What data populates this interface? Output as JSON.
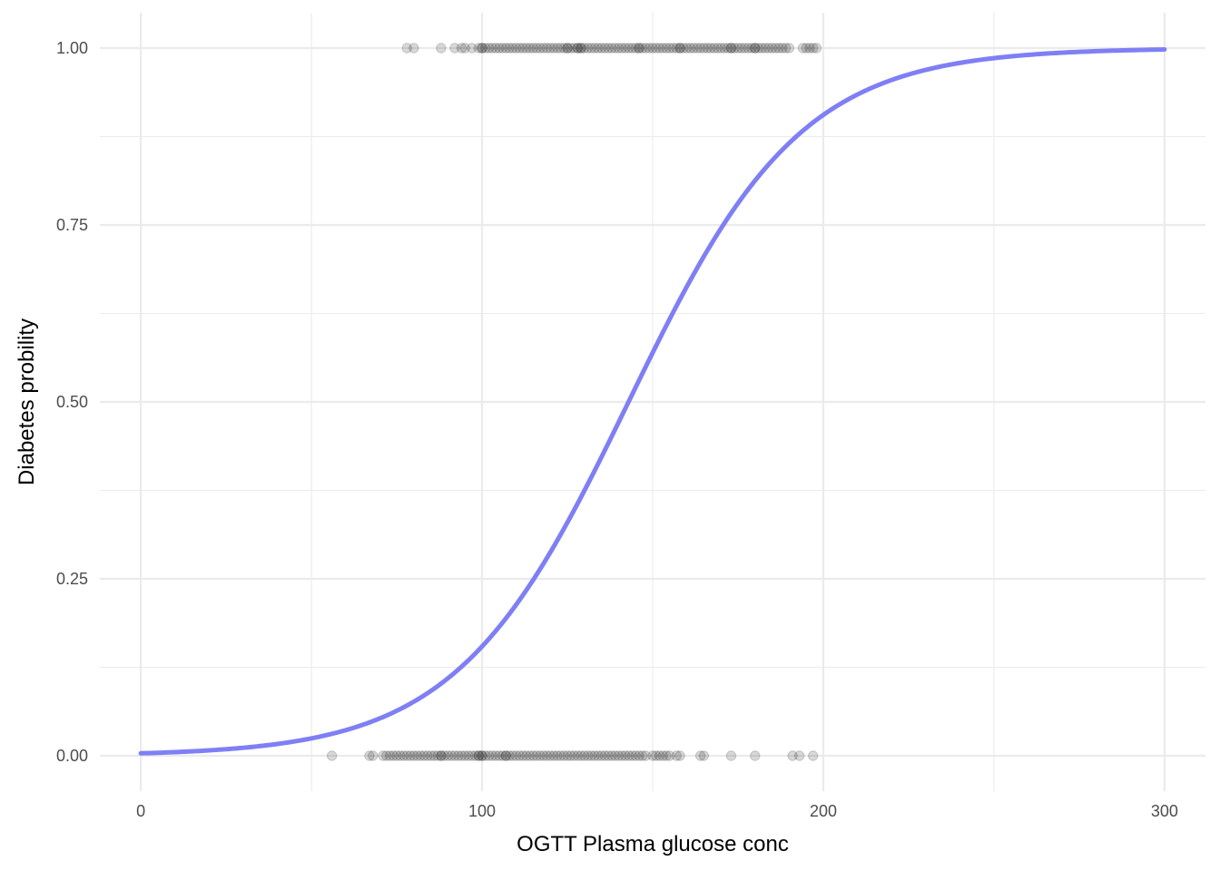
{
  "chart_data": {
    "type": "scatter",
    "title": "",
    "xlabel": "OGTT Plasma glucose conc",
    "ylabel": "Diabetes probility",
    "xlim": [
      -12,
      312
    ],
    "ylim": [
      -0.05,
      1.05
    ],
    "x_ticks": [
      {
        "value": 0,
        "label": "0"
      },
      {
        "value": 100,
        "label": "100"
      },
      {
        "value": 200,
        "label": "200"
      },
      {
        "value": 300,
        "label": "300"
      }
    ],
    "y_ticks": [
      {
        "value": 0,
        "label": "0.00"
      },
      {
        "value": 0.25,
        "label": "0.25"
      },
      {
        "value": 0.5,
        "label": "0.50"
      },
      {
        "value": 0.75,
        "label": "0.75"
      },
      {
        "value": 1,
        "label": "1.00"
      }
    ],
    "x_minor_gridlines": [
      50,
      150,
      250
    ],
    "y_minor_gridlines": [
      0.125,
      0.375,
      0.625,
      0.875
    ],
    "grid": true,
    "point_color": "#000000",
    "point_opacity": 0.15,
    "curve_color": "#7f7ff5",
    "curve": {
      "model": "logistic",
      "intercept": -5.66,
      "slope": 0.0396,
      "x_range": [
        0,
        300
      ]
    },
    "series": [
      {
        "outcome": 1,
        "x": [
          78,
          80,
          88,
          92,
          94,
          95,
          97,
          99,
          100,
          100,
          101,
          102,
          103,
          104,
          105,
          106,
          107,
          108,
          109,
          110,
          111,
          112,
          113,
          114,
          115,
          116,
          117,
          118,
          119,
          120,
          121,
          122,
          123,
          124,
          125,
          125,
          126,
          127,
          128,
          128,
          129,
          129,
          130,
          131,
          132,
          133,
          134,
          135,
          136,
          137,
          138,
          139,
          140,
          141,
          142,
          143,
          144,
          145,
          146,
          146,
          147,
          148,
          149,
          150,
          151,
          152,
          153,
          154,
          155,
          156,
          157,
          158,
          158,
          159,
          160,
          161,
          162,
          163,
          164,
          165,
          166,
          167,
          168,
          169,
          170,
          171,
          172,
          173,
          173,
          174,
          175,
          176,
          177,
          178,
          179,
          180,
          180,
          181,
          182,
          183,
          184,
          185,
          186,
          187,
          188,
          189,
          190,
          194,
          195,
          196,
          197,
          198
        ]
      },
      {
        "outcome": 0,
        "x": [
          56,
          67,
          68,
          71,
          72,
          73,
          74,
          75,
          76,
          77,
          78,
          79,
          80,
          81,
          82,
          83,
          84,
          85,
          86,
          87,
          88,
          88,
          89,
          90,
          91,
          92,
          93,
          94,
          95,
          96,
          97,
          98,
          99,
          99,
          100,
          100,
          101,
          102,
          103,
          104,
          105,
          106,
          107,
          107,
          108,
          109,
          110,
          111,
          112,
          113,
          114,
          115,
          116,
          117,
          118,
          119,
          120,
          121,
          122,
          123,
          124,
          125,
          126,
          127,
          128,
          129,
          130,
          131,
          132,
          133,
          134,
          135,
          136,
          137,
          138,
          139,
          140,
          141,
          142,
          143,
          144,
          145,
          146,
          147,
          148,
          150,
          151,
          152,
          153,
          154,
          155,
          157,
          158,
          164,
          165,
          173,
          180,
          191,
          193,
          197
        ]
      }
    ]
  }
}
